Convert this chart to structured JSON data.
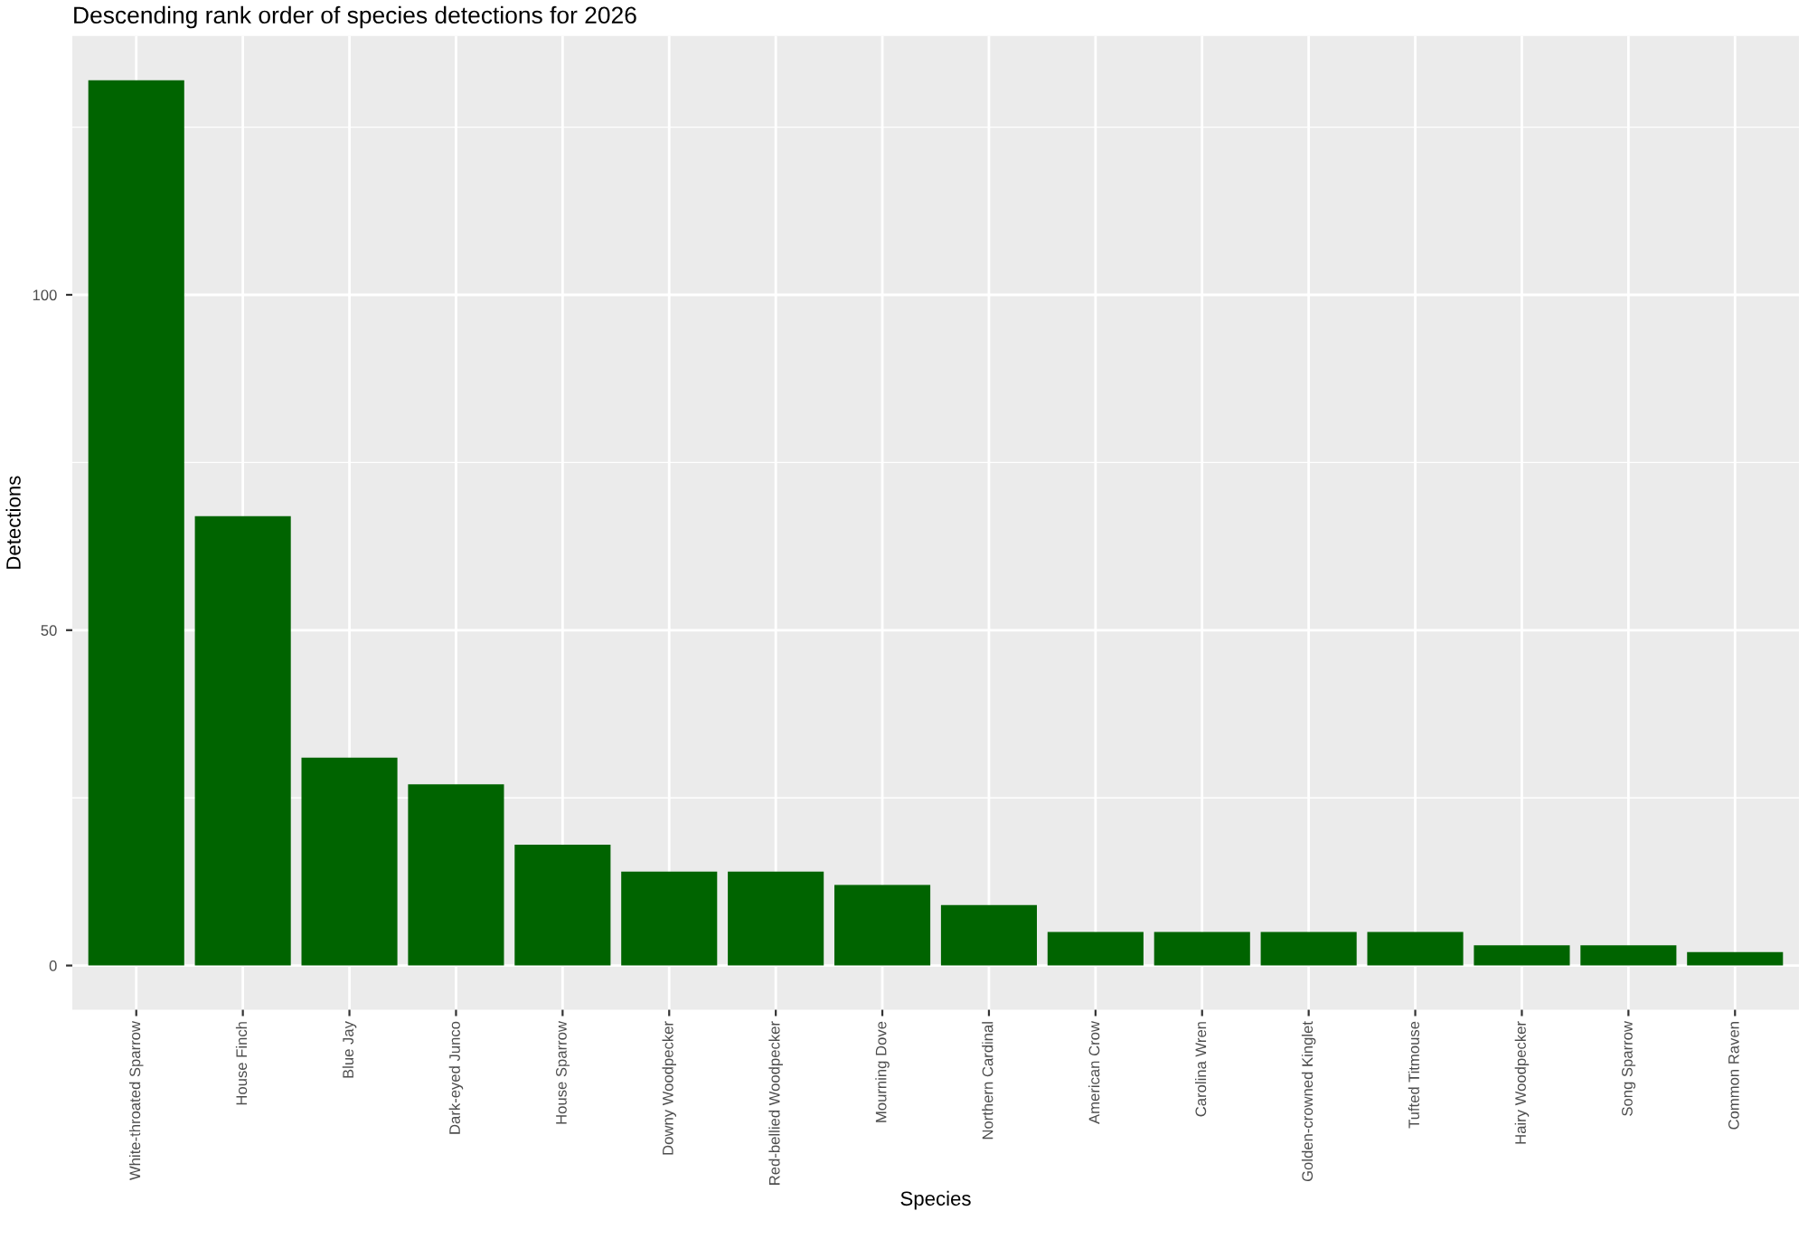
{
  "chart_data": {
    "type": "bar",
    "title": "Descending rank order of species detections for 2026",
    "xlabel": "Species",
    "ylabel": "Detections",
    "categories": [
      "White-throated Sparrow",
      "House Finch",
      "Blue Jay",
      "Dark-eyed Junco",
      "House Sparrow",
      "Downy Woodpecker",
      "Red-bellied Woodpecker",
      "Mourning Dove",
      "Northern Cardinal",
      "American Crow",
      "Carolina Wren",
      "Golden-crowned Kinglet",
      "Tufted Titmouse",
      "Hairy Woodpecker",
      "Song Sparrow",
      "Common Raven"
    ],
    "values": [
      132,
      67,
      31,
      27,
      18,
      14,
      14,
      12,
      9,
      5,
      5,
      5,
      5,
      3,
      3,
      2
    ],
    "color": "#006400",
    "ylim": [
      -6.6,
      138.6
    ],
    "yticks": [
      0,
      50,
      100
    ],
    "grid": true
  }
}
